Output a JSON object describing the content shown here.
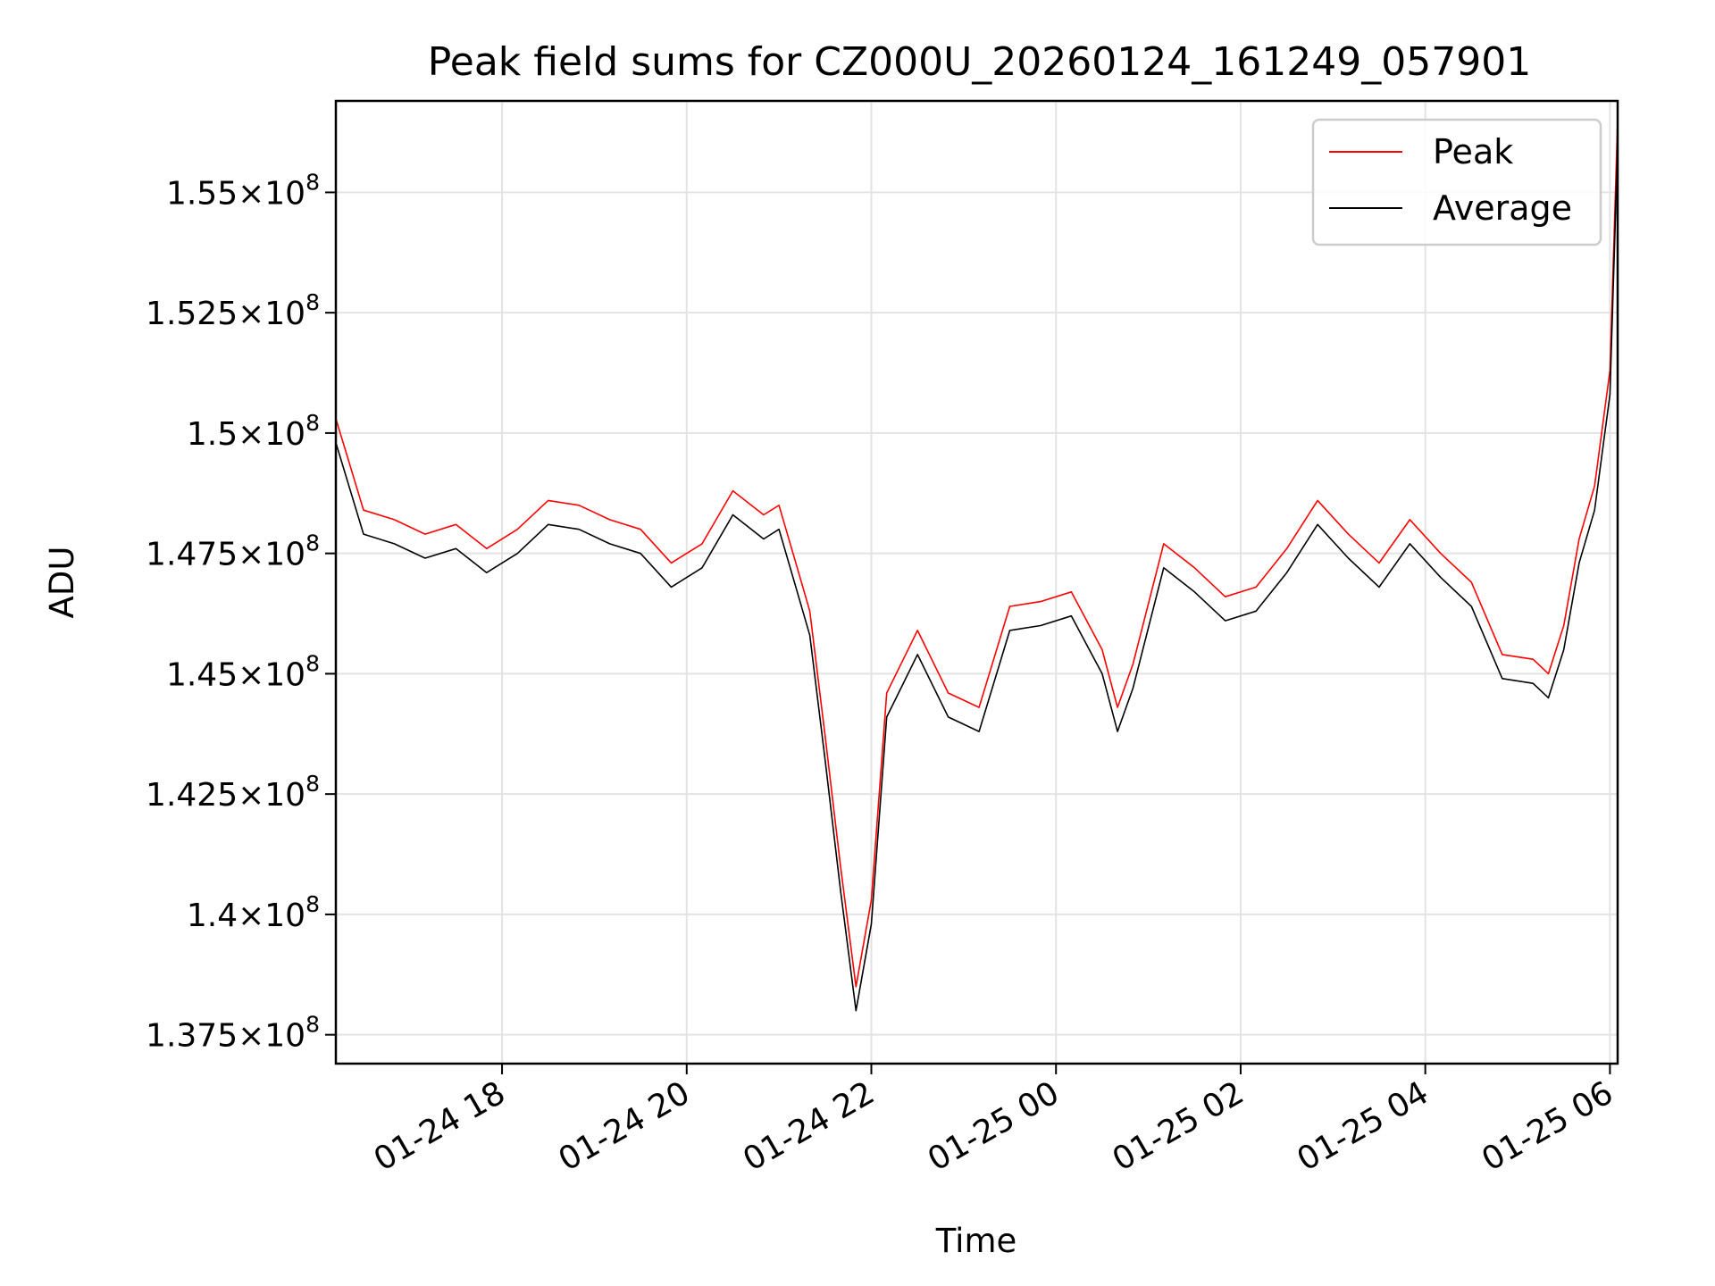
{
  "chart_data": {
    "type": "line",
    "title": "Peak field sums for CZ000U_20260124_161249_057901",
    "xlabel": "Time",
    "ylabel": "ADU",
    "x_range": [
      "01-24 16:12",
      "01-25 06:05"
    ],
    "ylim": [
      136900000,
      156900000
    ],
    "x_ticks": [
      {
        "label": "01-24 18",
        "value": "01-24 18:00"
      },
      {
        "label": "01-24 20",
        "value": "01-24 20:00"
      },
      {
        "label": "01-24 22",
        "value": "01-24 22:00"
      },
      {
        "label": "01-25 00",
        "value": "01-25 00:00"
      },
      {
        "label": "01-25 02",
        "value": "01-25 02:00"
      },
      {
        "label": "01-25 04",
        "value": "01-25 04:00"
      },
      {
        "label": "01-25 06",
        "value": "01-25 06:00"
      }
    ],
    "y_ticks": [
      {
        "mant": "1.375",
        "exp": "8",
        "value": 137500000
      },
      {
        "mant": "1.4",
        "exp": "8",
        "value": 140000000
      },
      {
        "mant": "1.425",
        "exp": "8",
        "value": 142500000
      },
      {
        "mant": "1.45",
        "exp": "8",
        "value": 145000000
      },
      {
        "mant": "1.475",
        "exp": "8",
        "value": 147500000
      },
      {
        "mant": "1.5",
        "exp": "8",
        "value": 150000000
      },
      {
        "mant": "1.525",
        "exp": "8",
        "value": 152500000
      },
      {
        "mant": "1.55",
        "exp": "8",
        "value": 155000000
      }
    ],
    "grid": true,
    "legend_position": "top-right",
    "series": [
      {
        "name": "Peak",
        "color": "#ff0000",
        "x": [
          "01-24 16:12",
          "01-24 16:30",
          "01-24 16:50",
          "01-24 17:10",
          "01-24 17:30",
          "01-24 17:50",
          "01-24 18:10",
          "01-24 18:30",
          "01-24 18:50",
          "01-24 19:10",
          "01-24 19:30",
          "01-24 19:50",
          "01-24 20:10",
          "01-24 20:30",
          "01-24 20:50",
          "01-24 21:00",
          "01-24 21:10",
          "01-24 21:20",
          "01-24 21:30",
          "01-24 21:40",
          "01-24 21:50",
          "01-24 22:00",
          "01-24 22:10",
          "01-24 22:30",
          "01-24 22:50",
          "01-24 23:10",
          "01-24 23:30",
          "01-24 23:50",
          "01-25 00:10",
          "01-25 00:30",
          "01-25 00:40",
          "01-25 00:50",
          "01-25 01:10",
          "01-25 01:30",
          "01-25 01:50",
          "01-25 02:10",
          "01-25 02:30",
          "01-25 02:50",
          "01-25 03:10",
          "01-25 03:30",
          "01-25 03:50",
          "01-25 04:10",
          "01-25 04:30",
          "01-25 04:50",
          "01-25 05:10",
          "01-25 05:20",
          "01-25 05:30",
          "01-25 05:40",
          "01-25 05:50",
          "01-25 06:00",
          "01-25 06:05"
        ],
        "values": [
          150300000,
          148400000,
          148200000,
          147900000,
          148100000,
          147600000,
          148000000,
          148600000,
          148500000,
          148200000,
          148000000,
          147300000,
          147700000,
          148800000,
          148300000,
          148500000,
          147400000,
          146300000,
          143700000,
          141000000,
          138500000,
          140300000,
          144600000,
          145900000,
          144600000,
          144300000,
          146400000,
          146500000,
          146700000,
          145500000,
          144300000,
          145200000,
          147700000,
          147200000,
          146600000,
          146800000,
          147600000,
          148600000,
          147900000,
          147300000,
          148200000,
          147500000,
          146900000,
          145400000,
          145300000,
          145000000,
          146000000,
          147800000,
          148900000,
          151300000,
          156500000
        ]
      },
      {
        "name": "Average",
        "color": "#000000",
        "x": [
          "01-24 16:12",
          "01-24 16:30",
          "01-24 16:50",
          "01-24 17:10",
          "01-24 17:30",
          "01-24 17:50",
          "01-24 18:10",
          "01-24 18:30",
          "01-24 18:50",
          "01-24 19:10",
          "01-24 19:30",
          "01-24 19:50",
          "01-24 20:10",
          "01-24 20:30",
          "01-24 20:50",
          "01-24 21:00",
          "01-24 21:10",
          "01-24 21:20",
          "01-24 21:30",
          "01-24 21:40",
          "01-24 21:50",
          "01-24 22:00",
          "01-24 22:10",
          "01-24 22:30",
          "01-24 22:50",
          "01-24 23:10",
          "01-24 23:30",
          "01-24 23:50",
          "01-25 00:10",
          "01-25 00:30",
          "01-25 00:40",
          "01-25 00:50",
          "01-25 01:10",
          "01-25 01:30",
          "01-25 01:50",
          "01-25 02:10",
          "01-25 02:30",
          "01-25 02:50",
          "01-25 03:10",
          "01-25 03:30",
          "01-25 03:50",
          "01-25 04:10",
          "01-25 04:30",
          "01-25 04:50",
          "01-25 05:10",
          "01-25 05:20",
          "01-25 05:30",
          "01-25 05:40",
          "01-25 05:50",
          "01-25 06:00",
          "01-25 06:05"
        ],
        "values": [
          149800000,
          147900000,
          147700000,
          147400000,
          147600000,
          147100000,
          147500000,
          148100000,
          148000000,
          147700000,
          147500000,
          146800000,
          147200000,
          148300000,
          147800000,
          148000000,
          146900000,
          145800000,
          143200000,
          140500000,
          138000000,
          139800000,
          144100000,
          145400000,
          144100000,
          143800000,
          145900000,
          146000000,
          146200000,
          145000000,
          143800000,
          144700000,
          147200000,
          146700000,
          146100000,
          146300000,
          147100000,
          148100000,
          147400000,
          146800000,
          147700000,
          147000000,
          146400000,
          144900000,
          144800000,
          144500000,
          145500000,
          147300000,
          148400000,
          150800000,
          156000000
        ]
      }
    ]
  }
}
